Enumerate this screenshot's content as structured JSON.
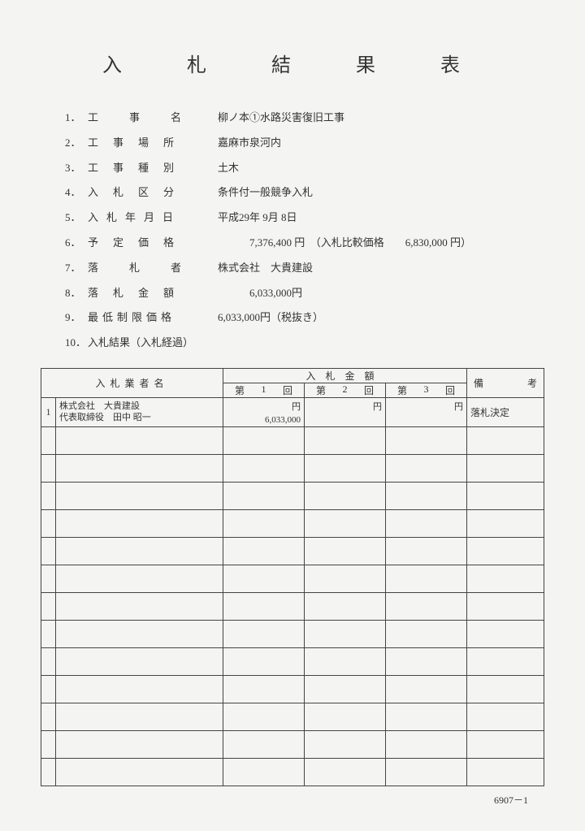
{
  "title": "入　札　結　果　表",
  "info": [
    {
      "num": "1．",
      "label": "工事名",
      "spacing": "spaced-2",
      "value": "柳ノ本①水路災害復旧工事"
    },
    {
      "num": "2．",
      "label": "工事場所",
      "spacing": "spaced-3",
      "value": "嘉麻市泉河内"
    },
    {
      "num": "3．",
      "label": "工事種別",
      "spacing": "spaced-3",
      "value": "土木"
    },
    {
      "num": "4．",
      "label": "入札区分",
      "spacing": "spaced-3",
      "value": "条件付一般競争入札"
    },
    {
      "num": "5．",
      "label": "入札年月日",
      "spacing": "spaced-4",
      "value": "平成29年 9月 8日"
    },
    {
      "num": "6．",
      "label": "予定価格",
      "spacing": "spaced-3",
      "value": "　　　7,376,400 円　（入札比較価格　　6,830,000 円）"
    },
    {
      "num": "7．",
      "label": "落札者",
      "spacing": "spaced-2",
      "value": "株式会社　大貴建設"
    },
    {
      "num": "8．",
      "label": "落札金額",
      "spacing": "spaced-3",
      "value": "　　　6,033,000円"
    },
    {
      "num": "9．",
      "label": "最低制限価格",
      "spacing": "spaced-5",
      "value": "6,033,000円（税抜き）"
    },
    {
      "num": "10．",
      "label": "入札結果（入札経過）",
      "spacing": "",
      "value": ""
    }
  ],
  "table": {
    "headers": {
      "bidder": "入札業者名",
      "amount_group": "入札金額",
      "remarks_left": "備",
      "remarks_right": "考",
      "round1": {
        "a": "第",
        "b": "1",
        "c": "回"
      },
      "round2": {
        "a": "第",
        "b": "2",
        "c": "回"
      },
      "round3": {
        "a": "第",
        "b": "3",
        "c": "回"
      }
    },
    "row1": {
      "num": "1",
      "bidder_line1": "株式会社　大貴建設",
      "bidder_line2": "代表取締役　田中 昭一",
      "yen": "円",
      "amount1": "6,033,000",
      "remarks": "落札決定"
    },
    "empty_rows": 13,
    "footer": "6907－1"
  },
  "style": {
    "background_color": "#f4f4f2",
    "text_color": "#333",
    "border_color": "#444",
    "body_fontsize": 13,
    "table_fontsize": 12,
    "title_fontsize": 24
  }
}
